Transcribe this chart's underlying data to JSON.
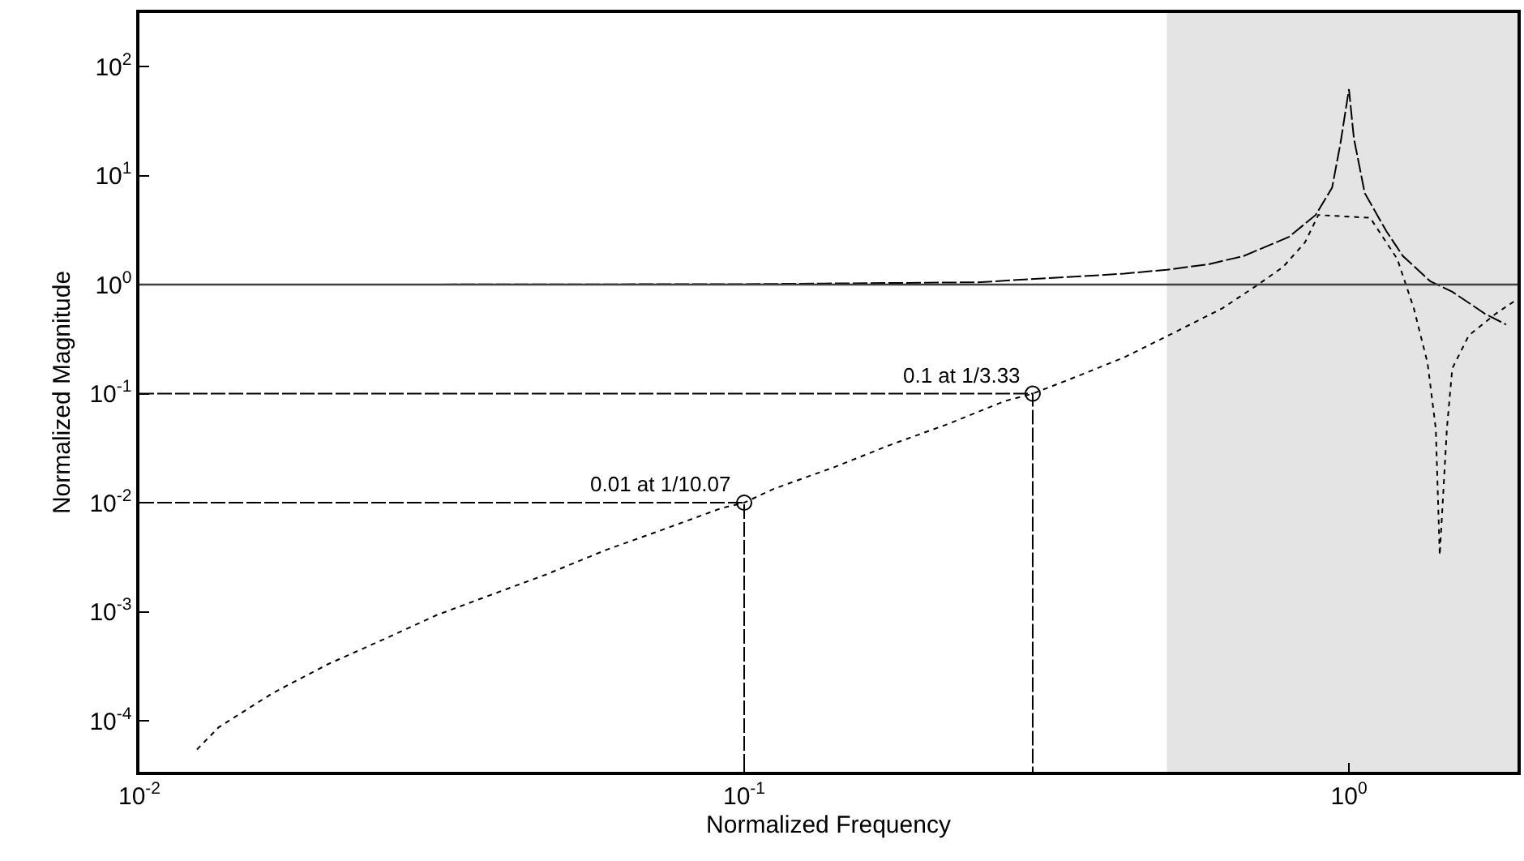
{
  "chart_data": {
    "type": "line",
    "xlabel": "Normalized Frequency",
    "ylabel": "Normalized Magnitude",
    "log": "xy",
    "grid": false,
    "xlim": [
      0.01,
      1.9
    ],
    "ylim": [
      3.4e-05,
      310
    ],
    "xticks": [
      {
        "value": 0.01,
        "label": "10$^{-2}$"
      },
      {
        "value": 0.1,
        "label": "10$^{-1}$"
      },
      {
        "value": 1,
        "label": "10$^{0}$"
      }
    ],
    "yticks": [
      {
        "value": 0.0001,
        "label": "10$^{-4}$"
      },
      {
        "value": 0.001,
        "label": "10$^{-3}$"
      },
      {
        "value": 0.01,
        "label": "10$^{-2}$"
      },
      {
        "value": 0.1,
        "label": "10$^{-1}$"
      },
      {
        "value": 1,
        "label": "10$^{0}$"
      },
      {
        "value": 10,
        "label": "10$^{1}$"
      },
      {
        "value": 100,
        "label": "10$^{2}$"
      }
    ],
    "bands": [
      {
        "axis": "x",
        "from": 0.5,
        "to": 1.9,
        "color": "#e4e4e4"
      }
    ],
    "ref_lines": [
      {
        "axis": "y",
        "value": 1,
        "color": "#404040",
        "line_style": "solid"
      }
    ],
    "series": [
      {
        "color": "#000000",
        "line_style": "dashed",
        "marker": "none",
        "x": [
          0.01,
          0.02,
          0.1,
          0.243,
          0.425,
          0.5,
          0.584,
          0.67,
          0.796,
          0.881,
          0.938,
          0.968,
          1.0,
          1.019,
          1.062,
          1.154,
          1.228,
          1.361,
          1.482,
          1.679,
          1.82
        ],
        "values": [
          1.0,
          1.0,
          1.01,
          1.05,
          1.26,
          1.37,
          1.53,
          1.83,
          2.74,
          4.35,
          7.75,
          19.6,
          62,
          22,
          6.9,
          3.07,
          1.83,
          1.08,
          0.86,
          0.54,
          0.43
        ]
      },
      {
        "color": "#000000",
        "line_style": "dotted",
        "marker": "none",
        "x": [
          0.01245,
          0.01352,
          0.01663,
          0.0205,
          0.0252,
          0.031,
          0.0383,
          0.0471,
          0.0592,
          0.073,
          0.0917,
          0.1,
          0.112,
          0.141,
          0.174,
          0.219,
          0.269,
          0.3,
          0.345,
          0.425,
          0.513,
          0.618,
          0.701,
          0.778,
          0.846,
          0.89,
          1.084,
          1.202,
          1.28,
          1.349,
          1.392,
          1.413,
          1.452,
          1.482,
          1.578,
          1.75,
          1.89
        ],
        "values": [
          5.45e-05,
          8.7e-05,
          0.00018,
          0.00033,
          0.00055,
          0.00093,
          0.00144,
          0.0022,
          0.0037,
          0.0056,
          0.0089,
          0.01,
          0.0134,
          0.0212,
          0.0337,
          0.0535,
          0.0851,
          0.1,
          0.135,
          0.215,
          0.361,
          0.608,
          0.966,
          1.45,
          2.44,
          4.35,
          4.1,
          1.72,
          0.608,
          0.191,
          0.0477,
          0.0033,
          0.0477,
          0.17,
          0.341,
          0.542,
          0.723
        ]
      },
      {
        "color": "#000000",
        "line_style": "dashed",
        "marker": "none",
        "x": [
          0.01,
          0.1,
          0.1
        ],
        "values": [
          0.01,
          0.01,
          3.4e-05
        ]
      },
      {
        "color": "#000000",
        "line_style": "dashed",
        "marker": "none",
        "x": [
          0.01,
          0.3,
          0.3
        ],
        "values": [
          0.1,
          0.1,
          3.4e-05
        ]
      },
      {
        "type": "scatter",
        "color": "#000000",
        "marker": "circle",
        "x": [
          0.1,
          0.3
        ],
        "values": [
          0.01,
          0.1
        ]
      }
    ],
    "annotations": [
      {
        "text": "0.01 at 1/10.07",
        "x": 0.1,
        "y": 0.01
      },
      {
        "text": "0.1 at 1/3.33",
        "x": 0.3,
        "y": 0.1
      }
    ]
  }
}
